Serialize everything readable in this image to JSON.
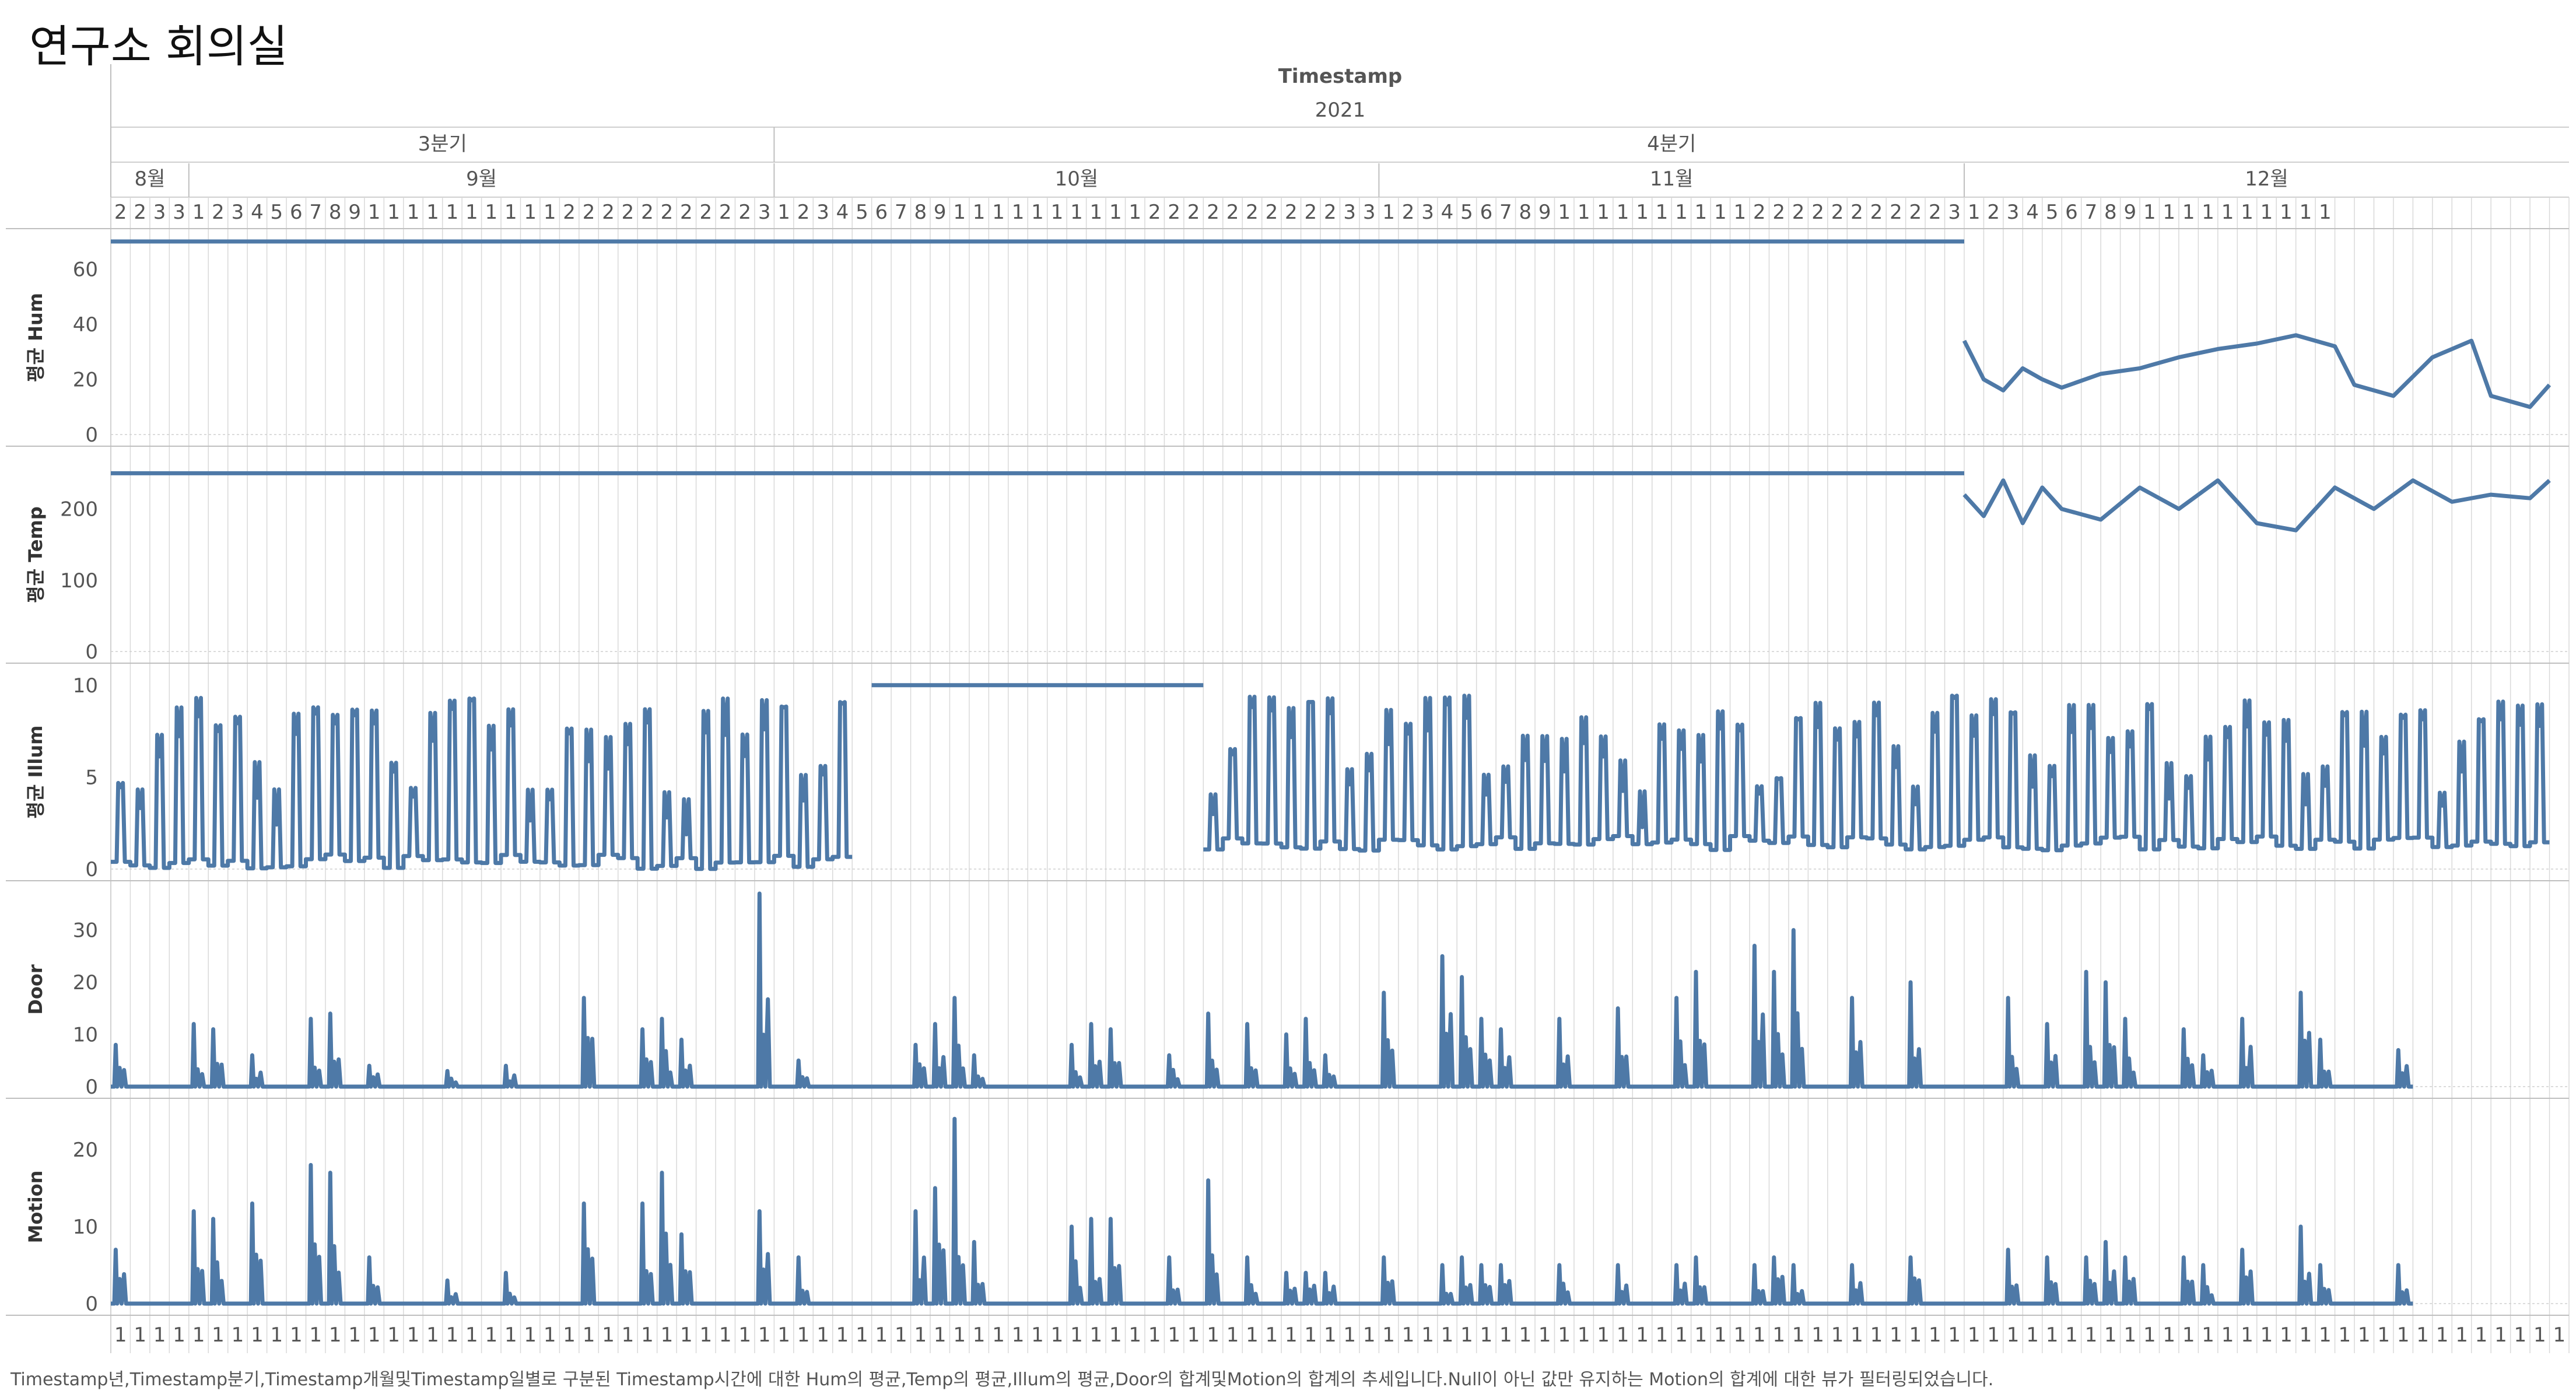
{
  "page": {
    "title": "연구소 회의실"
  },
  "header": {
    "field": "Timestamp",
    "year": "2021",
    "quarters": [
      "3분기",
      "4분기"
    ],
    "months": [
      "8월",
      "9월",
      "10월",
      "11월",
      "12월"
    ],
    "day_digits": [
      "2",
      "2",
      "3",
      "3",
      "1",
      "2",
      "3",
      "4",
      "5",
      "6",
      "7",
      "8",
      "9",
      "1",
      "1",
      "1",
      "1",
      "1",
      "1",
      "1",
      "1",
      "1",
      "1",
      "2",
      "2",
      "2",
      "2",
      "2",
      "2",
      "2",
      "2",
      "2",
      "2",
      "3",
      "1",
      "2",
      "3",
      "4",
      "5",
      "6",
      "7",
      "8",
      "9",
      "1",
      "1",
      "1",
      "1",
      "1",
      "1",
      "1",
      "1",
      "1",
      "1",
      "2",
      "2",
      "2",
      "2",
      "2",
      "2",
      "2",
      "2",
      "2",
      "2",
      "3",
      "3",
      "1",
      "2",
      "3",
      "4",
      "5",
      "6",
      "7",
      "8",
      "9",
      "1",
      "1",
      "1",
      "1",
      "1",
      "1",
      "1",
      "1",
      "1",
      "1",
      "2",
      "2",
      "2",
      "2",
      "2",
      "2",
      "2",
      "2",
      "2",
      "2",
      "3",
      "1",
      "2",
      "3",
      "4",
      "5",
      "6",
      "7",
      "8",
      "9",
      "1",
      "1",
      "1",
      "1",
      "1",
      "1",
      "1",
      "1",
      "1",
      "1"
    ],
    "hour_digit": "1"
  },
  "colors": {
    "line": "#4e79a7",
    "grid": "#d9d9d9",
    "border": "#bfbfbf"
  },
  "caption": "Timestamp년,Timestamp분기,Timestamp개월및Timestamp일별로 구분된 Timestamp시간에 대한 Hum의 평균,Temp의 평균,Illum의 평균,Door의 합계및Motion의 합계의 추세입니다.Null이 아닌 값만 유지하는 Motion의 합계에 대한 뷰가 필터링되었습니다.",
  "chart_data": {
    "type": "line",
    "x_range": [
      "2021-08-28",
      "2021-12-31"
    ],
    "panels": [
      {
        "ylabel": "평균 Hum",
        "ylim": [
          0,
          70
        ],
        "ticks": [
          0,
          20,
          40,
          60
        ],
        "segments": [
          {
            "x": [
              "2021-08-28",
              "2021-12-01"
            ],
            "y": [
              70,
              70
            ]
          },
          {
            "x": [
              "2021-12-01",
              "2021-12-02",
              "2021-12-03",
              "2021-12-04",
              "2021-12-05",
              "2021-12-06",
              "2021-12-08",
              "2021-12-10",
              "2021-12-12",
              "2021-12-14",
              "2021-12-16",
              "2021-12-18",
              "2021-12-20",
              "2021-12-21",
              "2021-12-23",
              "2021-12-25",
              "2021-12-27",
              "2021-12-28",
              "2021-12-30",
              "2021-12-31"
            ],
            "y": [
              34,
              20,
              16,
              24,
              20,
              17,
              22,
              24,
              28,
              31,
              33,
              36,
              32,
              18,
              14,
              28,
              34,
              14,
              10,
              18
            ]
          }
        ]
      },
      {
        "ylabel": "평균 Temp",
        "ylim": [
          0,
          270
        ],
        "ticks": [
          0,
          100,
          200
        ],
        "segments": [
          {
            "x": [
              "2021-08-28",
              "2021-12-01"
            ],
            "y": [
              250,
              250
            ]
          },
          {
            "x": [
              "2021-12-01",
              "2021-12-02",
              "2021-12-03",
              "2021-12-04",
              "2021-12-05",
              "2021-12-06",
              "2021-12-08",
              "2021-12-10",
              "2021-12-12",
              "2021-12-14",
              "2021-12-16",
              "2021-12-18",
              "2021-12-20",
              "2021-12-22",
              "2021-12-24",
              "2021-12-26",
              "2021-12-28",
              "2021-12-30",
              "2021-12-31"
            ],
            "y": [
              220,
              190,
              240,
              180,
              230,
              200,
              185,
              230,
              200,
              240,
              180,
              170,
              230,
              200,
              240,
              210,
              220,
              215,
              240
            ]
          }
        ]
      },
      {
        "ylabel": "평균 Illum",
        "ylim": [
          0,
          10.5
        ],
        "ticks": [
          0,
          5,
          10
        ],
        "segments": [
          {
            "x": [
              "2021-08-28",
              "2021-10-05"
            ],
            "style": "daily",
            "y": [
              0,
              9.5
            ]
          },
          {
            "x": [
              "2021-10-06",
              "2021-10-23"
            ],
            "y": [
              10,
              10
            ]
          },
          {
            "x": [
              "2021-10-23",
              "2021-12-31"
            ],
            "style": "daily",
            "y": [
              1,
              9.5
            ]
          }
        ]
      },
      {
        "ylabel": "Door",
        "ylim": [
          0,
          37
        ],
        "ticks": [
          0,
          10,
          20,
          30
        ],
        "values": [
          8,
          0,
          0,
          0,
          12,
          11,
          0,
          6,
          0,
          0,
          13,
          14,
          0,
          4,
          0,
          0,
          0,
          3,
          0,
          0,
          4,
          0,
          0,
          0,
          17,
          0,
          0,
          11,
          13,
          9,
          0,
          0,
          0,
          37,
          0,
          5,
          0,
          0,
          0,
          0,
          0,
          8,
          12,
          17,
          6,
          0,
          0,
          0,
          0,
          8,
          12,
          11,
          0,
          0,
          6,
          0,
          14,
          0,
          12,
          0,
          10,
          13,
          6,
          0,
          0,
          18,
          0,
          0,
          25,
          21,
          13,
          11,
          0,
          0,
          13,
          0,
          0,
          15,
          0,
          0,
          17,
          22,
          0,
          0,
          27,
          22,
          30,
          0,
          0,
          17,
          0,
          0,
          20,
          0,
          0,
          0,
          0,
          17,
          0,
          12,
          0,
          22,
          20,
          13,
          0,
          0,
          11,
          6,
          0,
          13,
          0,
          0,
          18,
          9,
          0,
          0,
          0,
          7
        ]
      },
      {
        "ylabel": "Motion",
        "ylim": [
          0,
          25
        ],
        "ticks": [
          0,
          10,
          20
        ],
        "values": [
          7,
          0,
          0,
          0,
          12,
          11,
          0,
          13,
          0,
          0,
          18,
          17,
          0,
          6,
          0,
          0,
          0,
          3,
          0,
          0,
          4,
          0,
          0,
          0,
          13,
          0,
          0,
          13,
          17,
          9,
          0,
          0,
          0,
          12,
          0,
          6,
          0,
          0,
          0,
          0,
          0,
          12,
          15,
          24,
          8,
          0,
          0,
          0,
          0,
          10,
          11,
          11,
          0,
          0,
          6,
          0,
          16,
          0,
          6,
          0,
          4,
          4,
          4,
          0,
          0,
          6,
          0,
          0,
          5,
          6,
          5,
          5,
          0,
          0,
          5,
          0,
          0,
          5,
          0,
          0,
          5,
          6,
          0,
          0,
          5,
          6,
          5,
          0,
          0,
          5,
          0,
          0,
          6,
          0,
          0,
          0,
          0,
          7,
          0,
          6,
          0,
          6,
          8,
          6,
          0,
          0,
          6,
          5,
          0,
          7,
          0,
          0,
          10,
          5,
          0,
          0,
          0,
          5
        ]
      }
    ]
  }
}
